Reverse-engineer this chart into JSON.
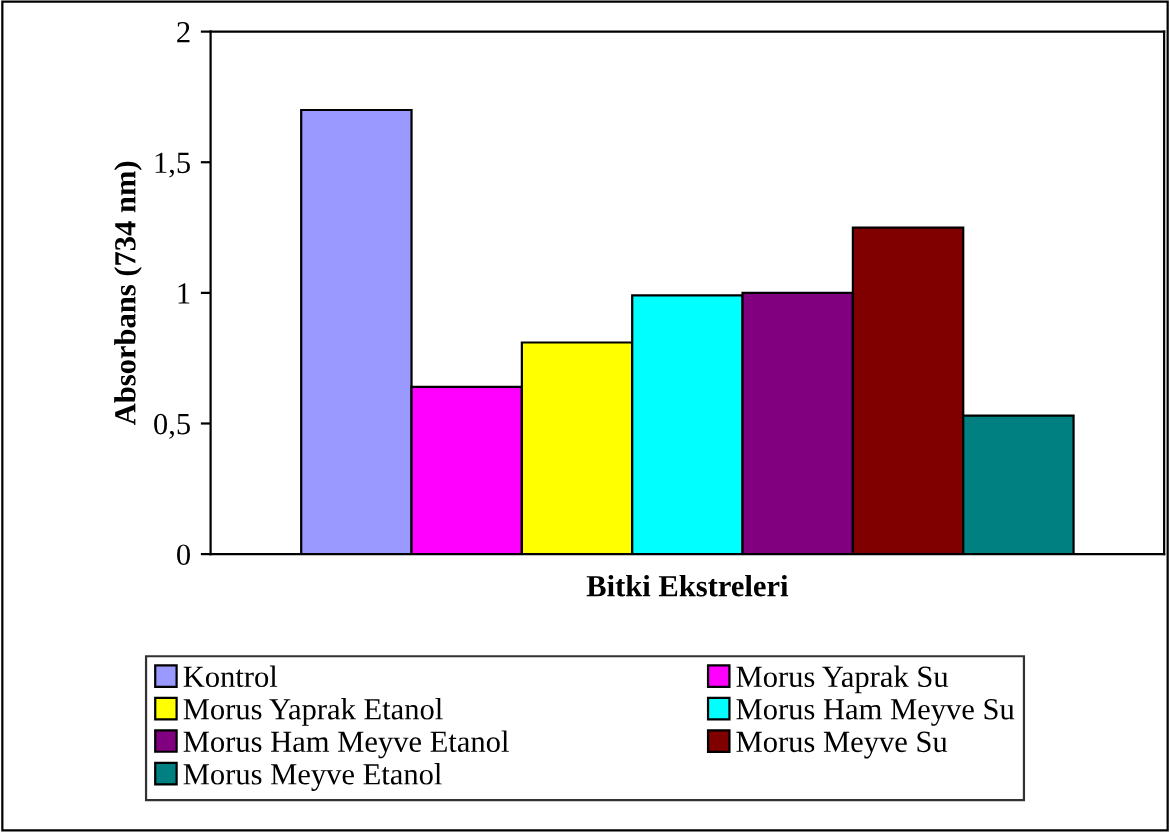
{
  "chart_data": {
    "type": "bar",
    "xlabel": "Bitki Ekstreleri",
    "ylabel": "Absorbans (734 nm)",
    "categories": [
      null
    ],
    "series": [
      {
        "name": "Kontrol",
        "color": "#9999ff",
        "values": [
          1.7
        ]
      },
      {
        "name": "Morus Yaprak Su",
        "color": "#ff00ff",
        "values": [
          0.64
        ]
      },
      {
        "name": "Morus Yaprak Etanol",
        "color": "#ffff00",
        "values": [
          0.81
        ]
      },
      {
        "name": "Morus Ham Meyve Su",
        "color": "#00ffff",
        "values": [
          0.99
        ]
      },
      {
        "name": "Morus Ham Meyve Etanol",
        "color": "#800080",
        "values": [
          1.0
        ]
      },
      {
        "name": "Morus Meyve Su",
        "color": "#800000",
        "values": [
          1.25
        ]
      },
      {
        "name": "Morus Meyve Etanol",
        "color": "#008080",
        "values": [
          0.53
        ]
      }
    ],
    "ylim": [
      0,
      2
    ],
    "yticks": [
      0,
      {
        "value": 0.5,
        "label": "0,5"
      },
      1,
      {
        "value": 1.5,
        "label": "1,5"
      },
      2
    ],
    "grid": false,
    "legend": "bottom"
  }
}
